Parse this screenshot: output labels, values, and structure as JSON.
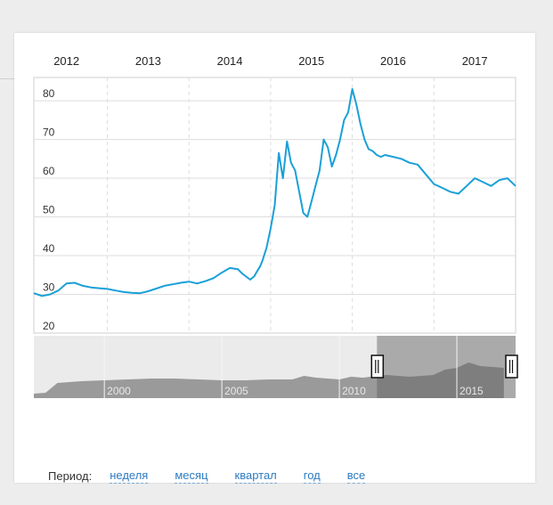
{
  "period": {
    "title": "Период:",
    "links": [
      "неделя",
      "месяц",
      "квартал",
      "год",
      "все"
    ]
  },
  "colors": {
    "line": "#1aa0d8",
    "nav_fill": "#9a9a9a",
    "nav_selection": "#d0d0d0"
  },
  "chart_data": {
    "type": "line",
    "title": "",
    "xlabel": "",
    "ylabel": "",
    "x_year_ticks": [
      "2012",
      "2013",
      "2014",
      "2015",
      "2016",
      "2017"
    ],
    "y_ticks": [
      20,
      30,
      40,
      50,
      60,
      70,
      80
    ],
    "ylim": [
      20,
      86
    ],
    "xlim": [
      2011.6,
      2017.5
    ],
    "grid": true,
    "series": [
      {
        "name": "",
        "x": [
          2011.6,
          2011.7,
          2011.8,
          2011.9,
          2012.0,
          2012.1,
          2012.2,
          2012.3,
          2012.4,
          2012.5,
          2012.6,
          2012.7,
          2012.8,
          2012.9,
          2013.0,
          2013.1,
          2013.2,
          2013.3,
          2013.4,
          2013.5,
          2013.6,
          2013.7,
          2013.8,
          2013.9,
          2014.0,
          2014.1,
          2014.15,
          2014.2,
          2014.25,
          2014.3,
          2014.33,
          2014.37,
          2014.4,
          2014.45,
          2014.5,
          2014.55,
          2014.6,
          2014.65,
          2014.7,
          2014.75,
          2014.8,
          2014.9,
          2014.95,
          2015.0,
          2015.05,
          2015.1,
          2015.15,
          2015.2,
          2015.25,
          2015.3,
          2015.35,
          2015.4,
          2015.45,
          2015.5,
          2015.55,
          2015.6,
          2015.65,
          2015.7,
          2015.75,
          2015.8,
          2015.85,
          2015.9,
          2016.0,
          2016.1,
          2016.2,
          2016.3,
          2016.4,
          2016.5,
          2016.6,
          2016.7,
          2016.8,
          2016.9,
          2017.0,
          2017.1,
          2017.2,
          2017.3,
          2017.4,
          2017.5
        ],
        "values": [
          30.3,
          29.6,
          30.0,
          31.0,
          32.8,
          33.0,
          32.2,
          31.8,
          31.6,
          31.4,
          31.0,
          30.6,
          30.4,
          30.3,
          30.8,
          31.5,
          32.2,
          32.6,
          33.0,
          33.3,
          32.8,
          33.4,
          34.2,
          35.6,
          36.8,
          36.5,
          35.4,
          34.6,
          33.8,
          34.7,
          35.8,
          37.2,
          38.7,
          42.0,
          47.0,
          53.0,
          66.5,
          60.0,
          69.5,
          64.0,
          62.0,
          51.0,
          50.0,
          54.0,
          58.0,
          62.0,
          70.0,
          68.0,
          63.0,
          66.0,
          70.0,
          75.0,
          77.0,
          83.0,
          79.0,
          74.0,
          70.0,
          67.5,
          67.0,
          66.0,
          65.5,
          66.0,
          65.5,
          65.0,
          64.0,
          63.5,
          61.0,
          58.5,
          57.5,
          56.5,
          56.0,
          58.0,
          60.0,
          59.0,
          58.0,
          59.5,
          60.0,
          58.0
        ]
      }
    ],
    "navigator": {
      "year_labels": [
        "2000",
        "2005",
        "2010",
        "2015"
      ],
      "x": [
        1997.0,
        1997.5,
        1998.0,
        1998.5,
        1999.0,
        2000.0,
        2001.0,
        2002.0,
        2003.0,
        2004.0,
        2005.0,
        2006.0,
        2007.0,
        2008.0,
        2008.5,
        2009.0,
        2009.5,
        2010.0,
        2010.5,
        2011.0,
        2012.0,
        2013.0,
        2014.0,
        2014.5,
        2015.0,
        2015.5,
        2016.0,
        2016.5,
        2017.0
      ],
      "values": [
        5,
        6,
        17,
        18,
        19,
        20,
        21,
        22,
        22,
        21,
        20,
        20,
        21,
        21,
        25,
        23,
        22,
        21,
        24,
        23,
        26,
        24,
        26,
        32,
        34,
        40,
        36,
        35,
        34
      ],
      "ylim": [
        0,
        70
      ],
      "xlim": [
        1997.0,
        2017.5
      ],
      "selection": [
        2011.6,
        2017.5
      ]
    }
  }
}
